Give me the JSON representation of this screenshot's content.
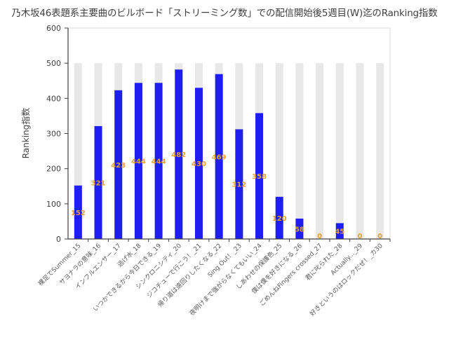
{
  "chart_data": {
    "type": "bar",
    "title": "乃木坂46表題系主要曲のビルボード「ストリーミング数」での配信開始後5週目(W)迄のRanking指数",
    "xlabel": "",
    "ylabel": "Ranking指数",
    "ylim": [
      0,
      600
    ],
    "yticks": [
      0,
      100,
      200,
      300,
      400,
      500,
      600
    ],
    "grid": true,
    "categories": [
      "裸足でSummer_15",
      "サヨナラの意味_16",
      "インフルエンサー_17",
      "逃げ水_18",
      "いつかできるから今日できる_19",
      "シンクロニシティ_20",
      "ジコチューで行こう！_21",
      "帰り道は遠回りしたくなる_22",
      "Sing Out！_23",
      "夜明けまで強がらなくてもいい_24",
      "しあわせの保護色_25",
      "僕は僕を好きになる_26",
      "ごめんねFingers crossed_27",
      "君に叱られた_28",
      "Actually..._29",
      "好きというのはロックだぜ！_カ30"
    ],
    "values": [
      152,
      321,
      423,
      444,
      444,
      482,
      430,
      469,
      312,
      358,
      120,
      58,
      0,
      45,
      0,
      0
    ],
    "background_max": 500,
    "colors": {
      "bar": "#1e1ef0",
      "background_bar": "#e8e8e8",
      "data_label": "#e6a12e"
    }
  }
}
